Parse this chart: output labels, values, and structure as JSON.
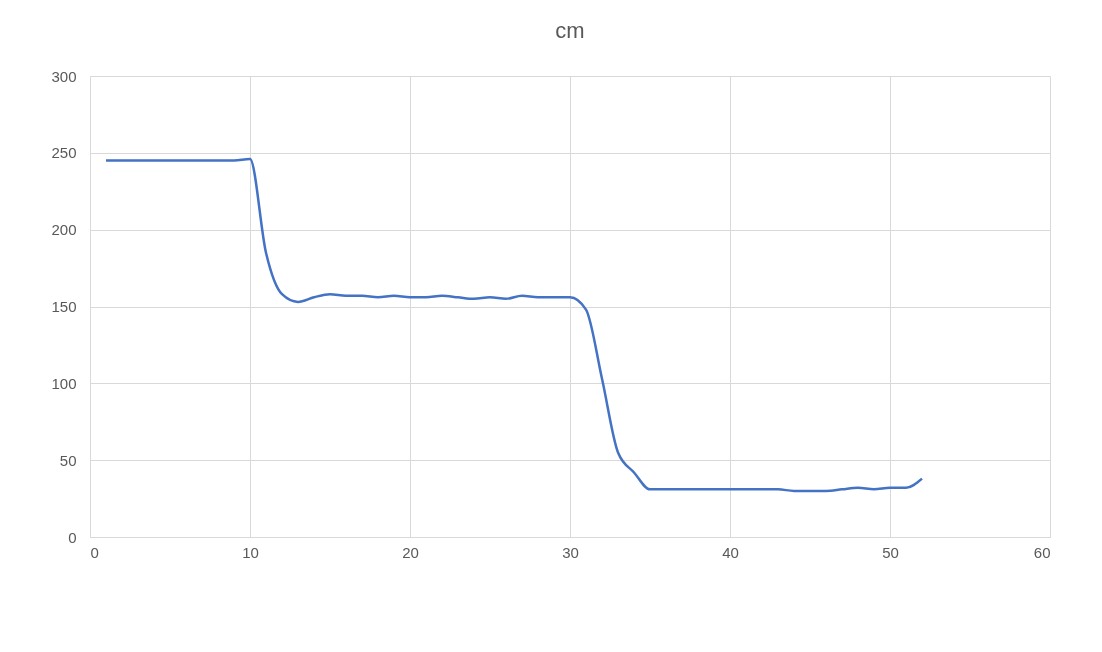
{
  "chart_data": {
    "type": "line",
    "title": "cm",
    "x": [
      1,
      2,
      3,
      4,
      5,
      6,
      7,
      8,
      9,
      10,
      11,
      12,
      13,
      14,
      15,
      16,
      17,
      18,
      19,
      20,
      21,
      22,
      23,
      24,
      25,
      26,
      27,
      28,
      29,
      30,
      31,
      32,
      33,
      34,
      35,
      36,
      37,
      38,
      39,
      40,
      41,
      42,
      43,
      44,
      45,
      46,
      47,
      48,
      49,
      50,
      51,
      52
    ],
    "series": [
      {
        "color": "#4472c4",
        "values": [
          245,
          245,
          245,
          245,
          245,
          245,
          245,
          245,
          245,
          246,
          185,
          158,
          153,
          156,
          158,
          157,
          157,
          156,
          157,
          156,
          156,
          157,
          156,
          155,
          156,
          155,
          157,
          156,
          156,
          156,
          148,
          103,
          55,
          42,
          31,
          31,
          31,
          31,
          31,
          31,
          31,
          31,
          31,
          30,
          30,
          30,
          31,
          32,
          31,
          32,
          32,
          38
        ]
      }
    ],
    "xlim": [
      0,
      60
    ],
    "xticks": [
      0,
      10,
      20,
      30,
      40,
      50,
      60
    ],
    "ylim": [
      0,
      300
    ],
    "yticks": [
      0,
      50,
      100,
      150,
      200,
      250,
      300
    ],
    "grid": true,
    "legend": false,
    "marker": "none",
    "line_style": "solid"
  }
}
